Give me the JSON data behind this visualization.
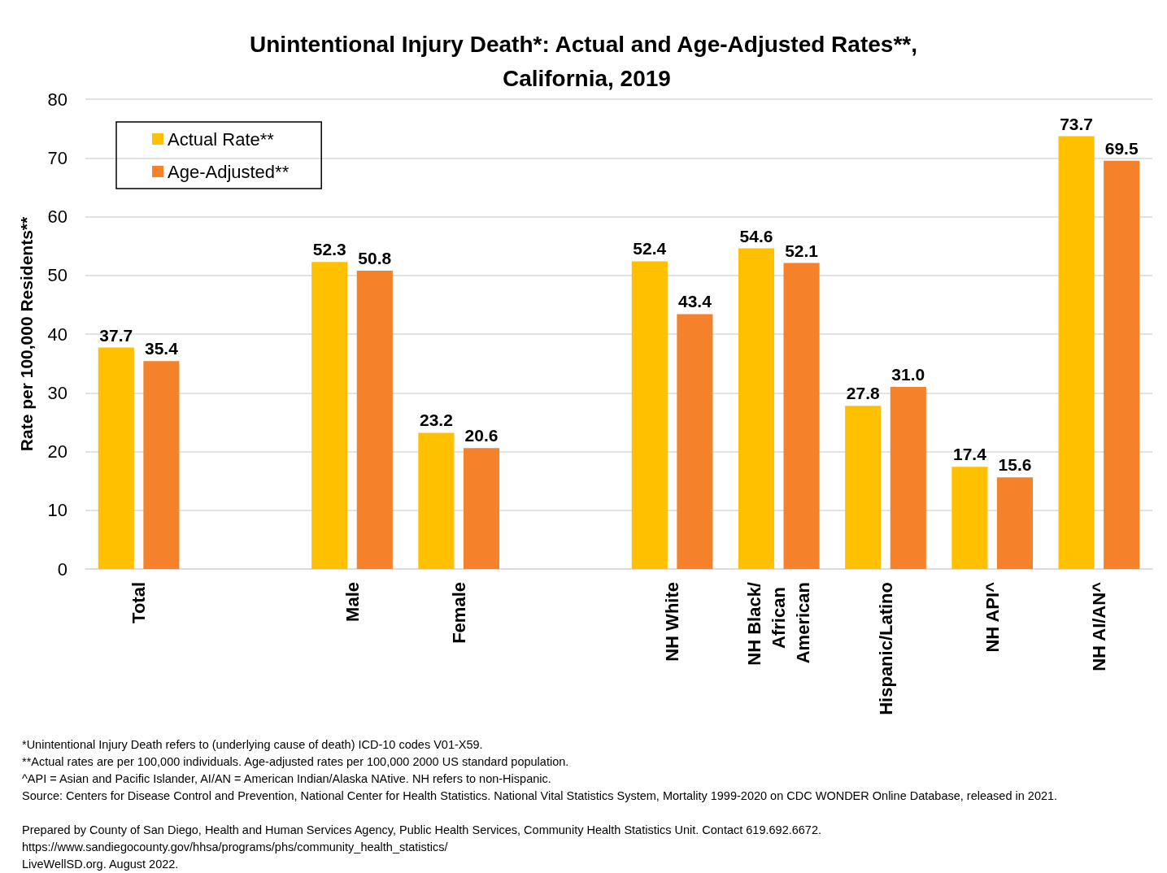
{
  "chart_data": {
    "type": "bar",
    "title": "Unintentional Injury Death*: Actual and Age-Adjusted Rates**, California, 2019",
    "ylabel": "Rate per 100,000 Residents**",
    "categories": [
      "Total",
      null,
      "Male",
      "Female",
      null,
      "NH White",
      "NH Black/African American",
      "Hispanic/Latino",
      "NH API^",
      "NH AI/AN^"
    ],
    "series": [
      {
        "name": "Actual Rate**",
        "color": "#ffc000",
        "values": [
          37.7,
          null,
          52.3,
          23.2,
          null,
          52.4,
          54.6,
          27.8,
          17.4,
          73.7
        ],
        "value_labels": [
          "37.7",
          null,
          "52.3",
          "23.2",
          null,
          "52.4",
          "54.6",
          "27.8",
          "17.4",
          "73.7"
        ]
      },
      {
        "name": "Age-Adjusted**",
        "color": "#f5822a",
        "values": [
          35.4,
          null,
          50.8,
          20.6,
          null,
          43.4,
          52.1,
          31.0,
          15.6,
          69.5
        ],
        "value_labels": [
          "35.4",
          null,
          "50.8",
          "20.6",
          null,
          "43.4",
          "52.1",
          "31.0",
          "15.6",
          "69.5"
        ]
      }
    ],
    "ylim": [
      0,
      80
    ],
    "yticks": [
      0,
      10,
      20,
      30,
      40,
      50,
      60,
      70,
      80
    ],
    "grid": "y",
    "legend": "top left",
    "annotations": [
      "*Unintentional Injury Death refers to (underlying cause of death) ICD-10 codes V01-X59.",
      "**Actual rates are per 100,000 individuals. Age-adjusted rates per 100,000 2000 US standard population.",
      "^API = Asian and Pacific Islander, AI/AN = American Indian/Alaska NAtive. NH refers to non-Hispanic.",
      "Source: Centers for Disease Control and Prevention, National Center for Health Statistics. National Vital Statistics System, Mortality 1999-2020 on CDC WONDER Online Database, released in 2021.",
      "Prepared by County of San Diego, Health and Human Services Agency, Public Health Services, Community Health Statistics Unit. Contact 619.692.6672.",
      "https://www.sandiegocounty.gov/hhsa/programs/phs/community_health_statistics/",
      "LiveWellSD.org. August 2022."
    ]
  }
}
